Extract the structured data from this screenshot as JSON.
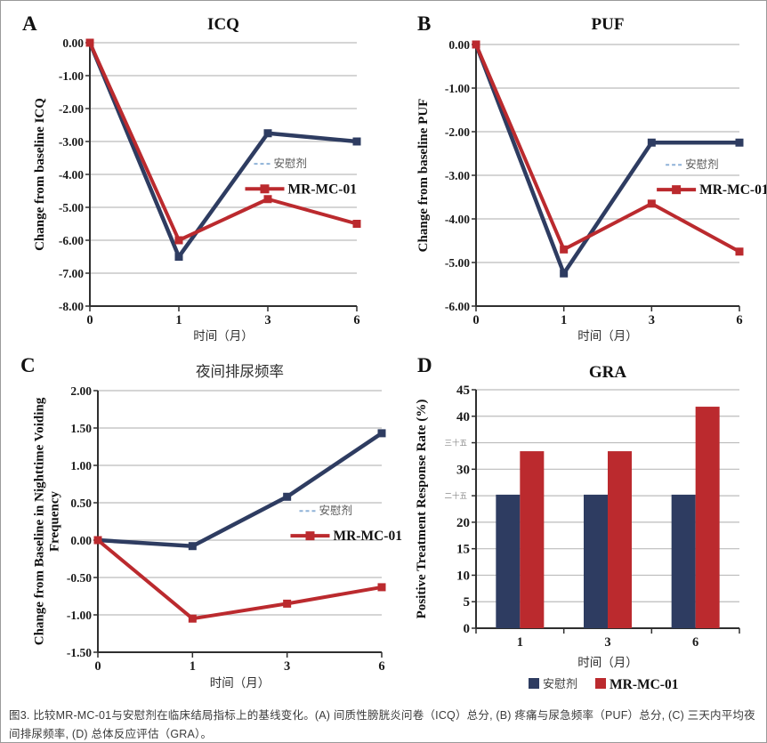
{
  "figure": {
    "caption": "图3. 比较MR-MC-01与安慰剂在临床结局指标上的基线变化。(A) 间质性膀胱炎问卷（ICQ）总分, (B) 疼痛与尿急频率（PUF）总分, (C) 三天内平均夜间排尿频率, (D) 总体反应评估（GRA）。"
  },
  "colors": {
    "placebo": "#2e3c61",
    "treatment": "#bb2a2e",
    "gridline": "#bcbcbc",
    "axis": "#2f2f2f",
    "legend_dash": "#8fb2d8"
  },
  "chart_data": [
    {
      "panel": "A",
      "type": "line",
      "title": "ICQ",
      "ylabel": "Change from baseline ICQ",
      "xlabel": "时间（月）",
      "categories": [
        "0",
        "1",
        "3",
        "6"
      ],
      "series": [
        {
          "name": "安慰剂",
          "role": "placebo",
          "values": [
            0,
            -6.5,
            -2.75,
            -3.0
          ]
        },
        {
          "name": "MR-MC-01",
          "role": "treatment",
          "values": [
            0,
            -6.0,
            -4.75,
            -5.5
          ]
        }
      ],
      "ylim": [
        -8,
        0
      ],
      "yticks": [
        0,
        -1,
        -2,
        -3,
        -4,
        -5,
        -6,
        -7,
        -8
      ],
      "ytick_labels": [
        "0.00",
        "-1.00",
        "-2.00",
        "-3.00",
        "-4.00",
        "-5.00",
        "-6.00",
        "-7.00",
        "-8.00"
      ],
      "legend_position": "inside-right",
      "grid": true
    },
    {
      "panel": "B",
      "type": "line",
      "title": "PUF",
      "ylabel": "Change from baseline PUF",
      "xlabel": "时间（月）",
      "categories": [
        "0",
        "1",
        "3",
        "6"
      ],
      "series": [
        {
          "name": "安慰剂",
          "role": "placebo",
          "values": [
            0,
            -5.25,
            -2.25,
            -2.25
          ]
        },
        {
          "name": "MR-MC-01",
          "role": "treatment",
          "values": [
            0,
            -4.7,
            -3.65,
            -4.75
          ]
        }
      ],
      "ylim": [
        -6,
        0
      ],
      "yticks": [
        0,
        -1,
        -2,
        -3,
        -4,
        -5,
        -6
      ],
      "ytick_labels": [
        "0.00",
        "-1.00",
        "-2.00",
        "-3.00",
        "-4.00",
        "-5.00",
        "-6.00"
      ],
      "legend_position": "inside-right",
      "grid": true
    },
    {
      "panel": "C",
      "type": "line",
      "title": "夜间排尿频率",
      "ylabel": "Change from Baseline in Nighttime Voiding Frequency",
      "xlabel": "时间（月）",
      "categories": [
        "0",
        "1",
        "3",
        "6"
      ],
      "series": [
        {
          "name": "安慰剂",
          "role": "placebo",
          "values": [
            0,
            -0.08,
            0.58,
            1.43
          ]
        },
        {
          "name": "MR-MC-01",
          "role": "treatment",
          "values": [
            0,
            -1.05,
            -0.85,
            -0.63
          ]
        }
      ],
      "ylim": [
        -1.5,
        2
      ],
      "yticks": [
        2,
        1.5,
        1,
        0.5,
        0,
        -0.5,
        -1,
        -1.5
      ],
      "ytick_labels": [
        "2.00",
        "1.50",
        "1.00",
        "0.50",
        "0.00",
        "-0.50",
        "-1.00",
        "-1.50"
      ],
      "legend_position": "inside-right",
      "grid": true
    },
    {
      "panel": "D",
      "type": "bar",
      "title": "GRA",
      "ylabel": "Positive Treatment Response Rate (%)",
      "xlabel": "时间（月）",
      "categories": [
        "1",
        "3",
        "6"
      ],
      "series": [
        {
          "name": "安慰剂",
          "role": "placebo",
          "values": [
            25.2,
            25.2,
            25.2
          ]
        },
        {
          "name": "MR-MC-01",
          "role": "treatment",
          "values": [
            33.4,
            33.4,
            41.8
          ]
        }
      ],
      "ylim": [
        0,
        45
      ],
      "yticks": [
        0,
        5,
        10,
        15,
        20,
        25,
        30,
        35,
        40,
        45
      ],
      "ytick_labels": [
        "0",
        "5",
        "10",
        "15",
        "20",
        "二十五",
        "30",
        "三十五",
        "40",
        "45"
      ],
      "legend_position": "bottom",
      "grid": true
    }
  ]
}
